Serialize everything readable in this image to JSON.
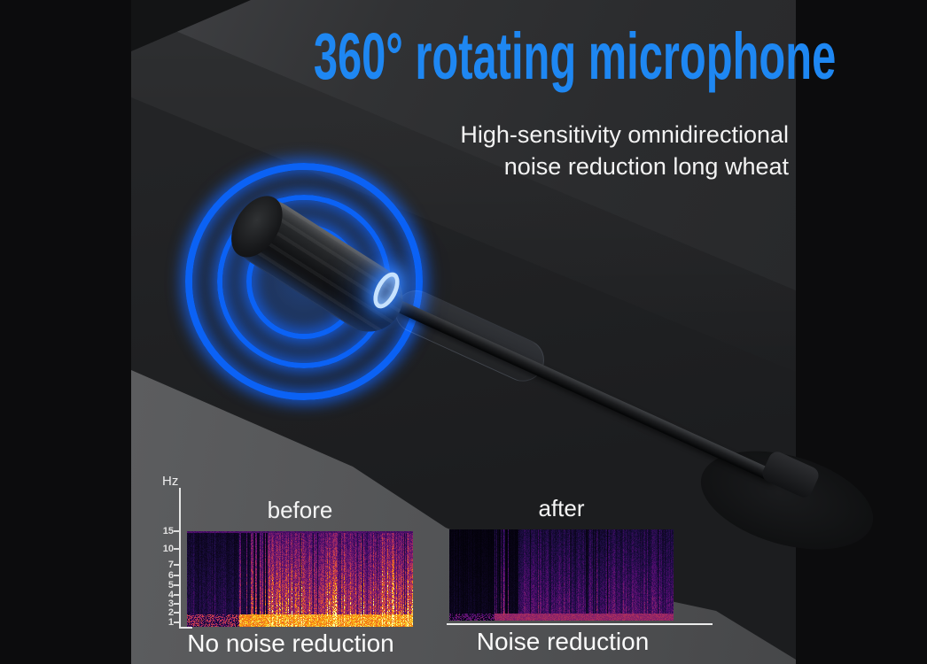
{
  "header": {
    "title": "360° rotating microphone",
    "subtitle_line1": "High-sensitivity omnidirectional",
    "subtitle_line2": "noise reduction long wheat"
  },
  "comparison": {
    "axis_unit": "Hz",
    "axis_ticks": [
      "15",
      "10",
      "7",
      "6",
      "5",
      "4",
      "3",
      "2",
      "1"
    ],
    "before": {
      "label": "before",
      "caption": "No noise reduction"
    },
    "after": {
      "label": "after",
      "caption": "Noise reduction"
    }
  },
  "colors": {
    "title_blue": "#1E87F2",
    "ring_blue": "#0B62F5",
    "text_white": "#F3F3F3",
    "surface_gray": "#555658",
    "background_dark": "#2B2C2E"
  },
  "chart_data": [
    {
      "type": "heatmap",
      "title": "before",
      "ylabel": "Hz",
      "yticks": [
        15,
        10,
        7,
        6,
        5,
        4,
        3,
        2,
        1
      ],
      "caption": "No noise reduction",
      "palette": "inferno",
      "legend_position": "none",
      "grid": false,
      "content": "dense high-energy spectrogram: bright orange-red vertical streaks with a yellow low-frequency band along the bottom; quieter dark-purple segment on the left quarter with sparse purple streaks"
    },
    {
      "type": "heatmap",
      "title": "after",
      "ylabel": "",
      "yticks": [],
      "caption": "Noise reduction",
      "palette": "inferno",
      "legend_position": "none",
      "grid": false,
      "content": "attenuated spectrogram: mostly dark purple-magenta vertical streaks with a thin red-orange low-frequency band; near-black left quarter"
    }
  ]
}
